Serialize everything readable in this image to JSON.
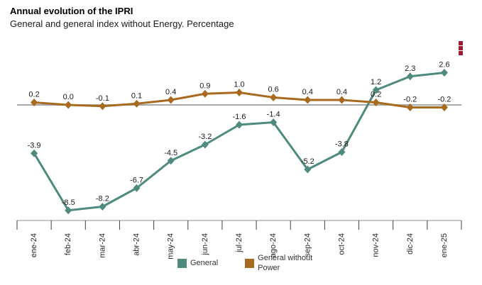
{
  "header": {
    "title": "Annual evolution of the IPRI",
    "subtitle": "General and general index without Energy. Percentage"
  },
  "menu": {
    "tooltip": "Chart context menu",
    "dots_color": "#9b1c31"
  },
  "chart_data": {
    "type": "line",
    "title": "Annual evolution of the IPRI",
    "subtitle": "General and general index without Energy. Percentage",
    "xlabel": "",
    "ylabel": "",
    "categories": [
      "ene-24",
      "feb-24",
      "mar-24",
      "abr-24",
      "may-24",
      "jun-24",
      "jul-24",
      "ago-24",
      "sep-24",
      "oct-24",
      "nov-24",
      "dic-24",
      "ene-25"
    ],
    "series": [
      {
        "name": "General",
        "color": "#4e8a7e",
        "values": [
          -3.9,
          -8.5,
          -8.2,
          -6.7,
          -4.5,
          -3.2,
          -1.6,
          -1.4,
          -5.2,
          -3.8,
          1.2,
          2.3,
          2.6
        ]
      },
      {
        "name": "General without Power",
        "color": "#a86a1e",
        "values": [
          0.2,
          0.0,
          -0.1,
          0.1,
          0.4,
          0.9,
          1.0,
          0.6,
          0.4,
          0.4,
          0.2,
          -0.2,
          -0.2
        ]
      }
    ],
    "value_label_decimals": 1,
    "marker": "diamond",
    "grid": false,
    "ylim": [
      -9.7,
      5.0
    ],
    "zero_line": true,
    "zero_line_color": "#a9a9a9",
    "axis_line_color": "#8c8c8c",
    "tick_color": "#404040",
    "label_color": "#1a1a1a",
    "x_label_rotation": -90,
    "legend_position": "bottom"
  }
}
